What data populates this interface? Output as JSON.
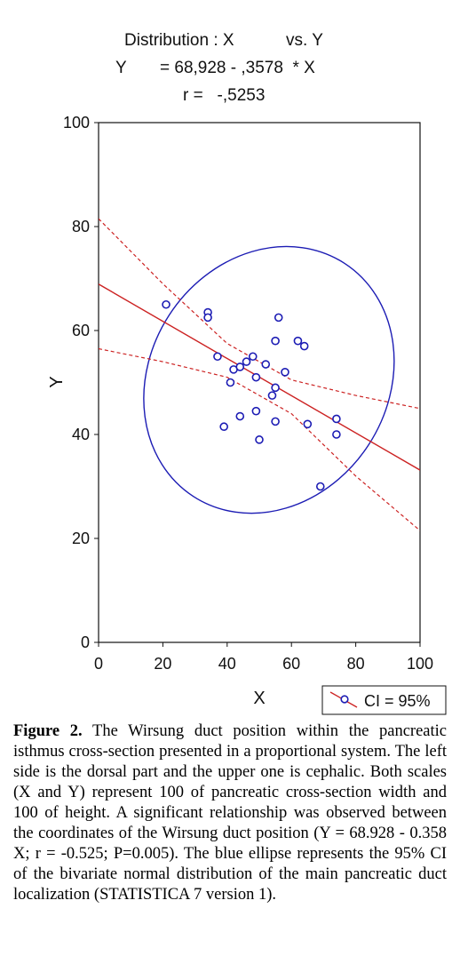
{
  "header": {
    "line1_left": "Distribution : X",
    "line1_right": "vs. Y",
    "line2_y": "Y",
    "line2_eq": "= 68,928 - ,3578  * X",
    "line3": "r =   -,5253"
  },
  "chart_data": {
    "type": "scatter",
    "xlabel": "X",
    "ylabel": "Y",
    "xlim": [
      0,
      100
    ],
    "ylim": [
      0,
      100
    ],
    "xticks": [
      "0",
      "20",
      "40",
      "60",
      "80",
      "100"
    ],
    "yticks": [
      "0",
      "20",
      "40",
      "60",
      "80",
      "100"
    ],
    "grid": false,
    "legend": {
      "label": "CI = 95%",
      "position": "bottom-right"
    },
    "regression": {
      "intercept": 68.928,
      "slope": -0.3578
    },
    "ci_upper": [
      [
        0,
        81.5
      ],
      [
        20,
        69
      ],
      [
        40,
        57.5
      ],
      [
        60,
        50.5
      ],
      [
        80,
        47.5
      ],
      [
        100,
        45
      ]
    ],
    "ci_lower": [
      [
        0,
        56.5
      ],
      [
        20,
        54
      ],
      [
        40,
        51
      ],
      [
        60,
        44
      ],
      [
        80,
        32
      ],
      [
        100,
        21.5
      ]
    ],
    "ellipse_95": {
      "center": [
        53,
        50.5
      ],
      "rx_units": 37,
      "ry_units": 16.5,
      "rotation_deg": 33
    },
    "points": [
      [
        21,
        65
      ],
      [
        34,
        63.5
      ],
      [
        34,
        62.5
      ],
      [
        37,
        55
      ],
      [
        39,
        41.5
      ],
      [
        41,
        50
      ],
      [
        42,
        52.5
      ],
      [
        44,
        53
      ],
      [
        44,
        43.5
      ],
      [
        46,
        54
      ],
      [
        48,
        55
      ],
      [
        49,
        51
      ],
      [
        49,
        44.5
      ],
      [
        50,
        39
      ],
      [
        52,
        53.5
      ],
      [
        54,
        47.5
      ],
      [
        55,
        58
      ],
      [
        55,
        49
      ],
      [
        55,
        42.5
      ],
      [
        56,
        62.5
      ],
      [
        58,
        52
      ],
      [
        62,
        58
      ],
      [
        64,
        57
      ],
      [
        65,
        42
      ],
      [
        69,
        30
      ],
      [
        74,
        43
      ],
      [
        74,
        40
      ]
    ],
    "colors": {
      "points": "#1c1cb4",
      "ellipse": "#1c1cb4",
      "regression": "#cc2222"
    }
  },
  "caption": {
    "label": "Figure 2.",
    "text": "The Wirsung duct position within the pancreatic isthmus cross-section presented in a proportional system. The left side is the dorsal part and the upper one is cephalic. Both scales (X and Y) represent 100 of pancreatic cross-section width and 100 of height. A significant relationship was observed between the coordinates of the Wirsung duct position (Y = 68.928 - 0.358 X; r = -0.525; P=0.005). The blue ellipse represents the 95% CI of the bivariate normal distribution of the main pancreatic duct localization (STATISTICA 7 version 1)."
  }
}
